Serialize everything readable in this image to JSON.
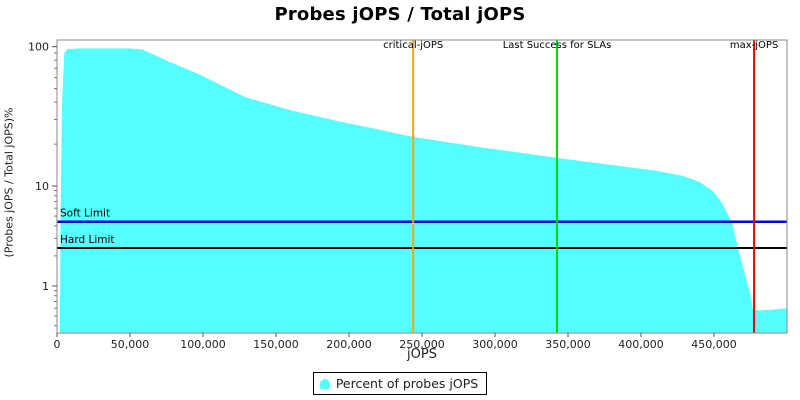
{
  "title": "Probes jOPS / Total jOPS",
  "legend": {
    "label": "Percent of probes jOPS",
    "marker_color": "#55FFFF"
  },
  "chart_data": {
    "type": "area",
    "title": "Probes jOPS / Total jOPS",
    "xlabel": "jOPS",
    "ylabel": "(Probes jOPS / Total jOPS)%",
    "x_axis": {
      "min": 0,
      "max": 500000,
      "ticks": [
        0,
        50000,
        100000,
        150000,
        200000,
        250000,
        300000,
        350000,
        400000,
        450000
      ],
      "tick_labels": [
        "0",
        "50,000",
        "100,000",
        "150,000",
        "200,000",
        "250,000",
        "300,000",
        "350,000",
        "400,000",
        "450,000"
      ]
    },
    "y_axis": {
      "scale": "log",
      "min": 0.34,
      "max": 112,
      "ticks": [
        100,
        10,
        1
      ],
      "tick_labels": [
        "100",
        "10",
        "1"
      ],
      "minor_ticks": [
        90,
        80,
        70,
        60,
        50,
        40,
        30,
        20,
        9,
        8,
        7,
        6,
        5,
        4,
        3,
        2,
        0.9,
        0.8,
        0.7,
        0.6,
        0.5,
        0.4
      ]
    },
    "series": [
      {
        "name": "Percent of probes jOPS",
        "color": "#55FFFF",
        "points": [
          [
            2000,
            0.35
          ],
          [
            2500,
            5
          ],
          [
            3500,
            40
          ],
          [
            5000,
            90
          ],
          [
            6800,
            96
          ],
          [
            15000,
            97
          ],
          [
            50000,
            97
          ],
          [
            57000,
            96
          ],
          [
            59000,
            95
          ],
          [
            77000,
            78
          ],
          [
            98000,
            63
          ],
          [
            129000,
            43.5
          ],
          [
            160000,
            35
          ],
          [
            194000,
            29
          ],
          [
            220000,
            25.5
          ],
          [
            244000,
            22.5
          ],
          [
            290000,
            19
          ],
          [
            320000,
            17.2
          ],
          [
            342500,
            15.9
          ],
          [
            386000,
            13.9
          ],
          [
            410000,
            12.9
          ],
          [
            429000,
            11.8
          ],
          [
            440000,
            10.7
          ],
          [
            449000,
            9.0
          ],
          [
            455500,
            6.8
          ],
          [
            462300,
            4.3
          ],
          [
            466400,
            2.45
          ],
          [
            471200,
            1.3
          ],
          [
            474700,
            0.85
          ],
          [
            476700,
            0.58
          ],
          [
            481500,
            0.57
          ],
          [
            490000,
            0.58
          ],
          [
            500000,
            0.6
          ]
        ]
      }
    ],
    "vlines": [
      {
        "label": "critical-jOPS",
        "x": 244000,
        "color": "#FFA500"
      },
      {
        "label": "Last Success for SLAs",
        "x": 342500,
        "color": "#00DD00"
      },
      {
        "label": "max-jOPS",
        "x": 477500,
        "color": "#EE0000"
      }
    ],
    "hlines": [
      {
        "label": "Soft Limit",
        "y": 4.4,
        "color": "#0000EE"
      },
      {
        "label": "Hard Limit",
        "y": 2.4,
        "color": "#000000"
      }
    ]
  }
}
